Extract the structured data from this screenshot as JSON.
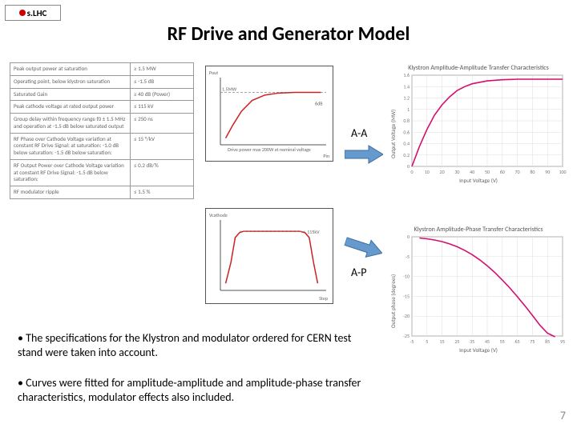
{
  "logo_text": "s.LHC",
  "title": "RF Drive and Generator Model",
  "spec_table": {
    "rows": [
      [
        "Peak output power at saturation",
        "≥ 1.5 MW"
      ],
      [
        "Operating point, below klystron saturation",
        "≤ -1.5 dB"
      ],
      [
        "Saturated Gain",
        "≥ 40 dB (Power)"
      ],
      [
        "Peak cathode voltage at rated output power",
        "≤ 115 kV"
      ],
      [
        "Group delay within frequency range f0 ± 1.5 MHz and operation at -1.5 dB below saturated output",
        "≤ 250 ns"
      ],
      [
        "RF Phase over Cathode Voltage variation at constant RF Drive Signal: at saturation: -1.0 dB below saturation: -1.5 dB below saturation:",
        "≤ 15 °/kV"
      ],
      [
        "RF Output Power over Cathode Voltage variation at constant RF Drive Signal: -1.5 dB below saturation:",
        "≤ 0.2 dB/%"
      ],
      [
        "RF modulator ripple",
        "≤ 1.5 %"
      ]
    ]
  },
  "arrows": {
    "color_fill": "#6699cc",
    "color_stroke": "#3a6ea5",
    "aa_label": "A-A",
    "ap_label": "A-P"
  },
  "chart_aa_small": {
    "type": "line",
    "ylabel": "Pout",
    "xlabel": "Pin",
    "caption": "Drive power max 200W at nominal voltage",
    "marker_label": "1.5MW",
    "right_label": "6dB",
    "line_color": "#cc2222",
    "border_color": "#555555",
    "points": [
      [
        0.05,
        0.9
      ],
      [
        0.12,
        0.7
      ],
      [
        0.2,
        0.5
      ],
      [
        0.3,
        0.34
      ],
      [
        0.42,
        0.26
      ],
      [
        0.55,
        0.23
      ],
      [
        0.7,
        0.22
      ],
      [
        0.85,
        0.22
      ],
      [
        0.95,
        0.22
      ]
    ],
    "saturation_y": 0.22
  },
  "chart_ap_small": {
    "type": "line",
    "ylabel": "Vcathode",
    "caption": "Step",
    "left_label": "115kV",
    "line_color": "#cc2222",
    "border_color": "#555555",
    "points": [
      [
        0.05,
        0.9
      ],
      [
        0.1,
        0.6
      ],
      [
        0.14,
        0.25
      ],
      [
        0.18,
        0.18
      ],
      [
        0.22,
        0.16
      ],
      [
        0.4,
        0.16
      ],
      [
        0.6,
        0.16
      ],
      [
        0.75,
        0.16
      ],
      [
        0.8,
        0.18
      ],
      [
        0.84,
        0.25
      ],
      [
        0.88,
        0.6
      ],
      [
        0.92,
        0.9
      ]
    ]
  },
  "chart_aa_big": {
    "type": "line",
    "title": "Klystron Amplitude-Amplitude Transfer Characteristics",
    "xlabel": "Input Voltage (V)",
    "ylabel": "Output Voltage (MW)",
    "line_color": "#d40f6e",
    "grid_color": "#dddddd",
    "background": "#ffffff",
    "xlim": [
      0,
      100
    ],
    "xtick_step": 10,
    "ylim": [
      0,
      1.6
    ],
    "ytick_step": 0.2,
    "points": [
      [
        0,
        0
      ],
      [
        5,
        0.35
      ],
      [
        10,
        0.65
      ],
      [
        15,
        0.9
      ],
      [
        20,
        1.08
      ],
      [
        25,
        1.22
      ],
      [
        30,
        1.33
      ],
      [
        35,
        1.4
      ],
      [
        40,
        1.45
      ],
      [
        50,
        1.5
      ],
      [
        60,
        1.52
      ],
      [
        70,
        1.53
      ],
      [
        80,
        1.53
      ],
      [
        90,
        1.53
      ],
      [
        100,
        1.53
      ]
    ]
  },
  "chart_ap_big": {
    "type": "line",
    "title": "Klystron Amplitude-Phase Transfer Characteristics",
    "xlabel": "Input Voltage (V)",
    "ylabel": "Output phase (degrees)",
    "line_color": "#d40f6e",
    "grid_color": "#dddddd",
    "background": "#ffffff",
    "xlim": [
      -5,
      95
    ],
    "xtick_step": 10,
    "ylim": [
      -25,
      0
    ],
    "ytick_step": 5,
    "points": [
      [
        0,
        -0.3
      ],
      [
        5,
        -0.5
      ],
      [
        10,
        -0.8
      ],
      [
        15,
        -1.2
      ],
      [
        20,
        -1.8
      ],
      [
        25,
        -2.5
      ],
      [
        30,
        -3.4
      ],
      [
        35,
        -4.5
      ],
      [
        40,
        -5.8
      ],
      [
        45,
        -7.3
      ],
      [
        50,
        -9.0
      ],
      [
        55,
        -10.9
      ],
      [
        60,
        -12.9
      ],
      [
        65,
        -15.1
      ],
      [
        70,
        -17.4
      ],
      [
        75,
        -19.8
      ],
      [
        80,
        -22.3
      ],
      [
        85,
        -24.3
      ],
      [
        90,
        -25.2
      ]
    ]
  },
  "bullets": {
    "b1": "• The specifications for the Klystron and modulator ordered for CERN test stand were taken into account.",
    "b2": "• Curves were fitted for amplitude-amplitude and amplitude-phase transfer characteristics, modulator effects also included."
  },
  "page_number": "7"
}
